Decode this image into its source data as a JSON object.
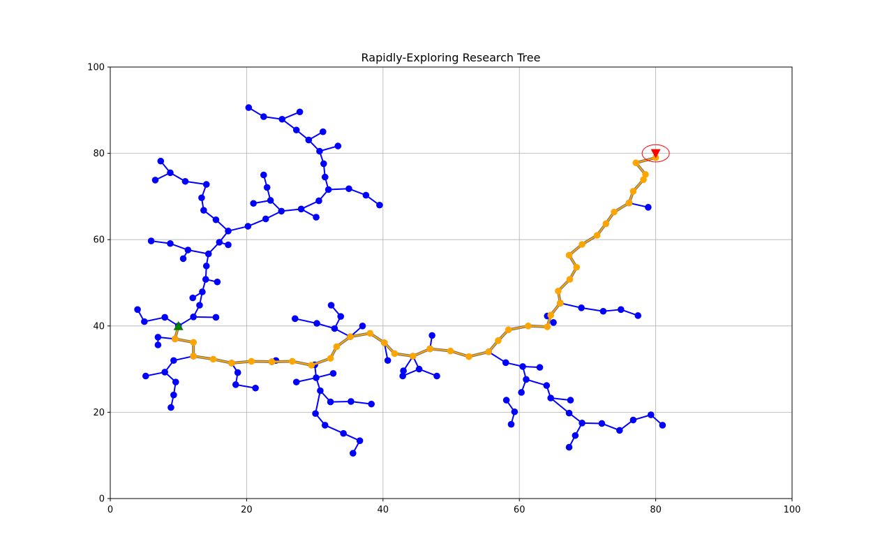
{
  "chart_data": {
    "type": "scatter",
    "title": "Rapidly-Exploring Research Tree",
    "xlabel": "",
    "ylabel": "",
    "xlim": [
      0,
      100
    ],
    "ylim": [
      0,
      100
    ],
    "xticks": [
      0,
      20,
      40,
      60,
      80,
      100
    ],
    "yticks": [
      0,
      20,
      40,
      60,
      80,
      100
    ],
    "x_tick_labels": [
      "0",
      "20",
      "40",
      "60",
      "80",
      "100"
    ],
    "y_tick_labels": [
      "0",
      "20",
      "40",
      "60",
      "80",
      "100"
    ],
    "grid": true,
    "colors": {
      "tree": "#0000ff",
      "path": "#ffa500",
      "start": "#008000",
      "goal": "#ff0000",
      "grid": "#b0b0b0"
    },
    "start": [
      10,
      40
    ],
    "goal": [
      80,
      80
    ],
    "goal_radius": 2,
    "tree_edges": [
      [
        [
          10,
          40
        ],
        [
          12.2,
          42.1
        ]
      ],
      [
        [
          12.2,
          42.1
        ],
        [
          15.5,
          42
        ]
      ],
      [
        [
          12.2,
          42.1
        ],
        [
          13.1,
          44.8
        ]
      ],
      [
        [
          13.1,
          44.8
        ],
        [
          13.5,
          47.9
        ]
      ],
      [
        [
          13.5,
          47.9
        ],
        [
          12.1,
          46.5
        ]
      ],
      [
        [
          13.5,
          47.9
        ],
        [
          14,
          50.8
        ]
      ],
      [
        [
          14,
          50.8
        ],
        [
          15.7,
          50.2
        ]
      ],
      [
        [
          14,
          50.8
        ],
        [
          14.1,
          53.9
        ]
      ],
      [
        [
          14.1,
          53.9
        ],
        [
          14.4,
          56.7
        ]
      ],
      [
        [
          14.4,
          56.7
        ],
        [
          11.4,
          57.6
        ]
      ],
      [
        [
          11.4,
          57.6
        ],
        [
          10.7,
          55.6
        ]
      ],
      [
        [
          11.4,
          57.6
        ],
        [
          8.8,
          59.1
        ]
      ],
      [
        [
          8.8,
          59.1
        ],
        [
          6,
          59.7
        ]
      ],
      [
        [
          14.4,
          56.7
        ],
        [
          16,
          59.4
        ]
      ],
      [
        [
          16,
          59.4
        ],
        [
          17.3,
          58.8
        ]
      ],
      [
        [
          16,
          59.4
        ],
        [
          17.3,
          62
        ]
      ],
      [
        [
          17.3,
          62
        ],
        [
          15.5,
          64.6
        ]
      ],
      [
        [
          15.5,
          64.6
        ],
        [
          13.7,
          66.8
        ]
      ],
      [
        [
          13.7,
          66.8
        ],
        [
          13.4,
          69.7
        ]
      ],
      [
        [
          13.4,
          69.7
        ],
        [
          14.1,
          72.8
        ]
      ],
      [
        [
          14.1,
          72.8
        ],
        [
          11,
          73.5
        ]
      ],
      [
        [
          11,
          73.5
        ],
        [
          8.8,
          75.5
        ]
      ],
      [
        [
          8.8,
          75.5
        ],
        [
          7.4,
          78.2
        ]
      ],
      [
        [
          8.8,
          75.5
        ],
        [
          6.6,
          73.8
        ]
      ],
      [
        [
          17.3,
          62
        ],
        [
          20.2,
          63.1
        ]
      ],
      [
        [
          20.2,
          63.1
        ],
        [
          22.8,
          64.8
        ]
      ],
      [
        [
          22.8,
          64.8
        ],
        [
          25.1,
          66.6
        ]
      ],
      [
        [
          25.1,
          66.6
        ],
        [
          28,
          67.1
        ]
      ],
      [
        [
          28,
          67.1
        ],
        [
          30.2,
          65.2
        ]
      ],
      [
        [
          28,
          67.1
        ],
        [
          30.6,
          69
        ]
      ],
      [
        [
          30.6,
          69
        ],
        [
          32,
          71.6
        ]
      ],
      [
        [
          32,
          71.6
        ],
        [
          35,
          71.8
        ]
      ],
      [
        [
          35,
          71.8
        ],
        [
          37.5,
          70.3
        ]
      ],
      [
        [
          37.5,
          70.3
        ],
        [
          39.5,
          68
        ]
      ],
      [
        [
          32,
          71.6
        ],
        [
          31.5,
          74.5
        ]
      ],
      [
        [
          31.5,
          74.5
        ],
        [
          31.3,
          77.6
        ]
      ],
      [
        [
          31.3,
          77.6
        ],
        [
          30.7,
          80.5
        ]
      ],
      [
        [
          30.7,
          80.5
        ],
        [
          33.4,
          81.7
        ]
      ],
      [
        [
          30.7,
          80.5
        ],
        [
          29.1,
          83.1
        ]
      ],
      [
        [
          29.1,
          83.1
        ],
        [
          31.2,
          85
        ]
      ],
      [
        [
          29.1,
          83.1
        ],
        [
          27.3,
          85.4
        ]
      ],
      [
        [
          27.3,
          85.4
        ],
        [
          25.2,
          87.9
        ]
      ],
      [
        [
          25.2,
          87.9
        ],
        [
          27.8,
          89.6
        ]
      ],
      [
        [
          25.2,
          87.9
        ],
        [
          22.5,
          88.5
        ]
      ],
      [
        [
          22.5,
          88.5
        ],
        [
          20.3,
          90.6
        ]
      ],
      [
        [
          25.1,
          66.6
        ],
        [
          23.5,
          69.1
        ]
      ],
      [
        [
          23.5,
          69.1
        ],
        [
          21,
          68.4
        ]
      ],
      [
        [
          23.5,
          69.1
        ],
        [
          23,
          72.1
        ]
      ],
      [
        [
          23,
          72.1
        ],
        [
          22.5,
          75
        ]
      ],
      [
        [
          5,
          41
        ],
        [
          8,
          42
        ]
      ],
      [
        [
          5,
          41
        ],
        [
          4,
          43.8
        ]
      ],
      [
        [
          8,
          42
        ],
        [
          10,
          40
        ]
      ],
      [
        [
          9.5,
          37
        ],
        [
          7,
          37.4
        ]
      ],
      [
        [
          7,
          37.4
        ],
        [
          7,
          35.6
        ]
      ],
      [
        [
          12.2,
          33
        ],
        [
          9.3,
          32
        ]
      ],
      [
        [
          9.3,
          32
        ],
        [
          8,
          29.3
        ]
      ],
      [
        [
          8,
          29.3
        ],
        [
          5.2,
          28.4
        ]
      ],
      [
        [
          8,
          29.3
        ],
        [
          9.6,
          27
        ]
      ],
      [
        [
          9.6,
          27
        ],
        [
          9.3,
          24
        ]
      ],
      [
        [
          9.3,
          24
        ],
        [
          8.9,
          21.1
        ]
      ],
      [
        [
          17.8,
          31.4
        ],
        [
          18.7,
          29.2
        ]
      ],
      [
        [
          18.7,
          29.2
        ],
        [
          18.4,
          26.4
        ]
      ],
      [
        [
          18.4,
          26.4
        ],
        [
          21.3,
          25.6
        ]
      ],
      [
        [
          24.3,
          32
        ],
        [
          23.7,
          31.7
        ]
      ],
      [
        [
          30,
          31
        ],
        [
          30.2,
          28
        ]
      ],
      [
        [
          30.2,
          28
        ],
        [
          27.3,
          27
        ]
      ],
      [
        [
          30.2,
          28
        ],
        [
          32.7,
          29
        ]
      ],
      [
        [
          30.2,
          28
        ],
        [
          30.8,
          25
        ]
      ],
      [
        [
          30.8,
          25
        ],
        [
          32.3,
          22.4
        ]
      ],
      [
        [
          32.3,
          22.4
        ],
        [
          35.3,
          22.5
        ]
      ],
      [
        [
          35.3,
          22.5
        ],
        [
          38.3,
          21.9
        ]
      ],
      [
        [
          30.8,
          25
        ],
        [
          30.1,
          19.7
        ]
      ],
      [
        [
          30.1,
          19.7
        ],
        [
          31.5,
          17
        ]
      ],
      [
        [
          31.5,
          17
        ],
        [
          34.2,
          15.1
        ]
      ],
      [
        [
          34.2,
          15.1
        ],
        [
          36.6,
          13.4
        ]
      ],
      [
        [
          36.6,
          13.4
        ],
        [
          35.6,
          10.5
        ]
      ],
      [
        [
          35.2,
          37.5
        ],
        [
          32.9,
          39.4
        ]
      ],
      [
        [
          32.9,
          39.4
        ],
        [
          33.8,
          42.2
        ]
      ],
      [
        [
          33.8,
          42.2
        ],
        [
          32.4,
          44.8
        ]
      ],
      [
        [
          32.9,
          39.4
        ],
        [
          30.3,
          40.6
        ]
      ],
      [
        [
          30.3,
          40.6
        ],
        [
          27.1,
          41.7
        ]
      ],
      [
        [
          35.2,
          37.5
        ],
        [
          37,
          40
        ]
      ],
      [
        [
          40.2,
          36.1
        ],
        [
          40.7,
          32
        ]
      ],
      [
        [
          44.4,
          33
        ],
        [
          45.3,
          30
        ]
      ],
      [
        [
          45.3,
          30
        ],
        [
          42.9,
          28.4
        ]
      ],
      [
        [
          45.3,
          30
        ],
        [
          47.9,
          28.4
        ]
      ],
      [
        [
          44.4,
          33
        ],
        [
          43,
          29.6
        ]
      ],
      [
        [
          46.9,
          34.7
        ],
        [
          47.2,
          37.8
        ]
      ],
      [
        [
          55.5,
          34
        ],
        [
          58,
          31.5
        ]
      ],
      [
        [
          58,
          31.5
        ],
        [
          60.5,
          30.6
        ]
      ],
      [
        [
          60.5,
          30.6
        ],
        [
          63,
          30.4
        ]
      ],
      [
        [
          60.5,
          30.6
        ],
        [
          61,
          27.6
        ]
      ],
      [
        [
          61,
          27.6
        ],
        [
          60.3,
          24.6
        ]
      ],
      [
        [
          61,
          27.6
        ],
        [
          64,
          26.2
        ]
      ],
      [
        [
          64,
          26.2
        ],
        [
          64.6,
          23.3
        ]
      ],
      [
        [
          64.6,
          23.3
        ],
        [
          67.5,
          22.8
        ]
      ],
      [
        [
          64.6,
          23.3
        ],
        [
          67.3,
          19.8
        ]
      ],
      [
        [
          67.3,
          19.8
        ],
        [
          69.2,
          17.5
        ]
      ],
      [
        [
          69.2,
          17.5
        ],
        [
          68.2,
          14.6
        ]
      ],
      [
        [
          68.2,
          14.6
        ],
        [
          67.3,
          11.9
        ]
      ],
      [
        [
          69.2,
          17.5
        ],
        [
          72.1,
          17.4
        ]
      ],
      [
        [
          72.1,
          17.4
        ],
        [
          74.7,
          15.8
        ]
      ],
      [
        [
          74.7,
          15.8
        ],
        [
          76.7,
          18.2
        ]
      ],
      [
        [
          76.7,
          18.2
        ],
        [
          79.3,
          19.4
        ]
      ],
      [
        [
          79.3,
          19.4
        ],
        [
          81,
          17
        ]
      ],
      [
        [
          58.1,
          22.8
        ],
        [
          59.3,
          20.1
        ]
      ],
      [
        [
          59.3,
          20.1
        ],
        [
          58.8,
          17.2
        ]
      ],
      [
        [
          64.1,
          42.3
        ],
        [
          65
        ],
        40.8
      ],
      [
        [
          66,
          45.3
        ],
        [
          69.1,
          44.2
        ]
      ],
      [
        [
          69.1,
          44.2
        ],
        [
          72.3,
          43.4
        ]
      ],
      [
        [
          72.3,
          43.4
        ],
        [
          74.9,
          43.8
        ]
      ],
      [
        [
          74.9,
          43.8
        ],
        [
          77.4,
          42.4
        ]
      ],
      [
        [
          76.1,
          68.5
        ],
        [
          78.9,
          67.5
        ]
      ]
    ],
    "extra_nodes": [
      [
        64.1,
        42.3
      ],
      [
        65,
        40.8
      ],
      [
        37,
        40
      ],
      [
        40.7,
        32
      ],
      [
        43,
        29.6
      ]
    ],
    "path": [
      [
        10,
        40
      ],
      [
        9.5,
        37
      ],
      [
        12.2,
        36.2
      ],
      [
        12.2,
        33
      ],
      [
        15.1,
        32.3
      ],
      [
        17.8,
        31.4
      ],
      [
        20.7,
        31.8
      ],
      [
        23.7,
        31.7
      ],
      [
        26.7,
        31.8
      ],
      [
        29.5,
        30.9
      ],
      [
        32.3,
        32.5
      ],
      [
        33.2,
        35.2
      ],
      [
        35.2,
        37.5
      ],
      [
        38.1,
        38.3
      ],
      [
        40.2,
        36.1
      ],
      [
        41.7,
        33.6
      ],
      [
        44.4,
        33
      ],
      [
        46.9,
        34.7
      ],
      [
        49.9,
        34.2
      ],
      [
        52.6,
        32.9
      ],
      [
        55.5,
        34
      ],
      [
        56.9,
        36.6
      ],
      [
        58.4,
        39.1
      ],
      [
        61.3,
        40
      ],
      [
        64.1,
        39.8
      ],
      [
        64.6,
        42.5
      ],
      [
        66,
        45.3
      ],
      [
        65.7,
        48.1
      ],
      [
        67.4,
        50.8
      ],
      [
        68.4,
        53.6
      ],
      [
        67.3,
        56.4
      ],
      [
        69.2,
        58.9
      ],
      [
        71.4,
        61
      ],
      [
        72.7,
        63.7
      ],
      [
        73.9,
        66.4
      ],
      [
        76.1,
        68.5
      ],
      [
        76.7,
        71.2
      ],
      [
        78.2,
        73.9
      ],
      [
        78.5,
        75.1
      ],
      [
        77.1,
        77.8
      ],
      [
        80,
        79
      ]
    ]
  }
}
